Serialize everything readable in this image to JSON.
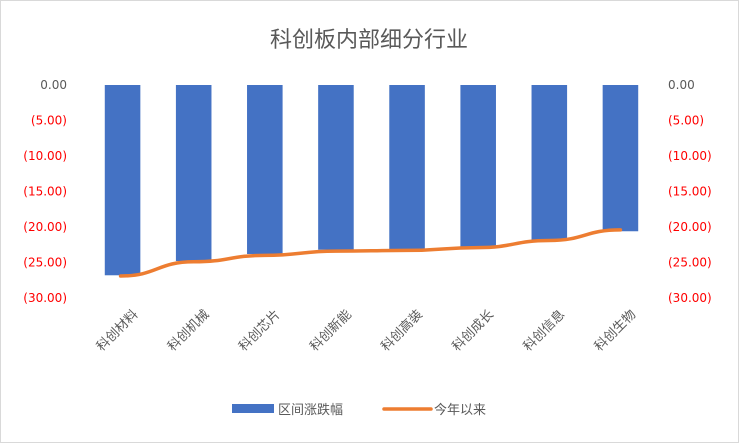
{
  "chart_data": {
    "type": "bar",
    "title": "科创板内部细分行业",
    "categories": [
      "科创材料",
      "科创机械",
      "科创芯片",
      "科创新能",
      "科创高装",
      "科创成长",
      "科创信息",
      "科创生物"
    ],
    "series": [
      {
        "name": "区间涨跌幅",
        "type": "bar",
        "color": "#4472C4",
        "values": [
          -26.8,
          -24.8,
          -23.8,
          -23.2,
          -23.2,
          -22.9,
          -21.9,
          -20.6
        ]
      },
      {
        "name": "今年以来",
        "type": "line",
        "color": "#ED7D31",
        "values": [
          -26.9,
          -24.9,
          -24.0,
          -23.4,
          -23.3,
          -22.9,
          -21.9,
          -20.4
        ]
      }
    ],
    "ylim": [
      -30,
      0
    ],
    "yticks": [
      0,
      -5,
      -10,
      -15,
      -20,
      -25,
      -30
    ],
    "ytick_labels": [
      "0.00",
      "(5.00)",
      "(10.00)",
      "(15.00)",
      "(20.00)",
      "(25.00)",
      "(30.00)"
    ],
    "ytick_label_colors": {
      "zero": "#595959",
      "negative": "#ff0000"
    },
    "secondary_axis": true,
    "grid": false,
    "legend_position": "bottom"
  }
}
